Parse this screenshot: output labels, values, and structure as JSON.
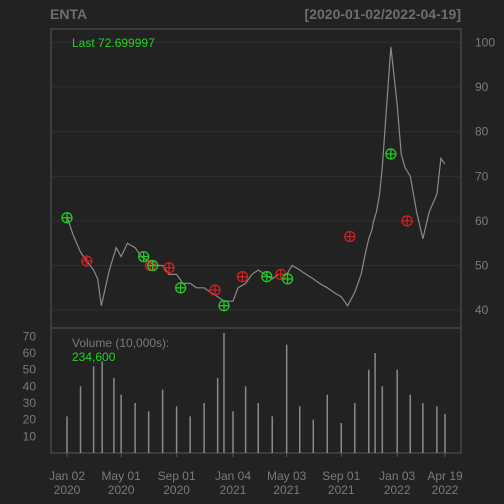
{
  "header": {
    "symbol": "ENTA",
    "range": "[2020-01-02/2022-04-19]"
  },
  "price_panel": {
    "last_label": "Last 72.699997"
  },
  "volume_panel": {
    "title": "Volume (10,000s):",
    "last_value": "234,600"
  },
  "colors": {
    "background": "#222222",
    "frame": "#555555",
    "price_line": "#8a8a8a",
    "volume_bars": "#8a8a8a",
    "up_signal": "#22cc22",
    "down_signal": "#cc2222",
    "text_green": "#1fd61f",
    "text_grey": "#7a7a7a"
  },
  "chart_data": [
    {
      "type": "line",
      "title": "ENTA",
      "subtitle": "[2020-01-02/2022-04-19]",
      "series": [
        {
          "x": [
            "2020-01-02",
            "2020-01-15",
            "2020-02-01",
            "2020-02-15",
            "2020-03-01",
            "2020-03-10",
            "2020-03-18",
            "2020-03-25",
            "2020-04-05",
            "2020-04-20",
            "2020-05-01",
            "2020-05-15",
            "2020-06-01",
            "2020-06-15",
            "2020-07-01",
            "2020-07-15",
            "2020-08-01",
            "2020-08-15",
            "2020-09-01",
            "2020-09-15",
            "2020-10-01",
            "2020-10-15",
            "2020-11-01",
            "2020-11-15",
            "2020-12-01",
            "2020-12-15",
            "2021-01-04",
            "2021-01-15",
            "2021-02-01",
            "2021-02-15",
            "2021-03-01",
            "2021-03-15",
            "2021-04-01",
            "2021-04-15",
            "2021-05-03",
            "2021-05-15",
            "2021-06-01",
            "2021-06-15",
            "2021-07-01",
            "2021-07-15",
            "2021-08-01",
            "2021-08-15",
            "2021-09-01",
            "2021-09-15",
            "2021-10-01",
            "2021-10-15",
            "2021-10-25",
            "2021-11-01",
            "2021-11-08",
            "2021-11-12",
            "2021-11-18",
            "2021-11-25",
            "2021-12-01",
            "2021-12-10",
            "2021-12-20",
            "2022-01-03",
            "2022-01-12",
            "2022-01-20",
            "2022-02-01",
            "2022-02-15",
            "2022-03-01",
            "2022-03-15",
            "2022-04-01",
            "2022-04-10",
            "2022-04-19"
          ],
          "values": [
            61,
            57,
            53,
            51,
            49,
            47,
            41,
            44,
            49,
            54,
            52,
            55,
            54,
            52,
            51,
            50,
            50,
            48,
            48,
            46,
            46,
            45,
            45,
            44,
            43,
            42,
            42,
            45,
            46,
            48,
            49,
            48,
            47,
            48,
            48,
            50,
            49,
            48,
            47,
            46,
            45,
            44,
            43,
            41,
            44,
            48,
            53,
            56,
            58,
            60,
            62,
            66,
            72,
            85,
            99,
            86,
            75,
            72,
            70,
            62,
            56,
            62,
            66,
            74,
            72.7
          ]
        }
      ],
      "signals_up": [
        {
          "x": "2020-01-02",
          "y": 60.7
        },
        {
          "x": "2020-06-20",
          "y": 52
        },
        {
          "x": "2020-07-10",
          "y": 50
        },
        {
          "x": "2020-09-10",
          "y": 45
        },
        {
          "x": "2020-12-15",
          "y": 41
        },
        {
          "x": "2021-03-20",
          "y": 47.5
        },
        {
          "x": "2021-05-05",
          "y": 47
        },
        {
          "x": "2021-12-20",
          "y": 75
        }
      ],
      "signals_down": [
        {
          "x": "2020-02-15",
          "y": 51
        },
        {
          "x": "2020-07-05",
          "y": 50
        },
        {
          "x": "2020-08-15",
          "y": 49.5
        },
        {
          "x": "2020-11-25",
          "y": 44.5
        },
        {
          "x": "2021-01-25",
          "y": 47.5
        },
        {
          "x": "2021-04-20",
          "y": 48
        },
        {
          "x": "2021-09-20",
          "y": 56.5
        },
        {
          "x": "2022-01-25",
          "y": 60
        }
      ],
      "ylim": [
        36,
        103
      ],
      "yticks": [
        40,
        50,
        60,
        70,
        80,
        90,
        100
      ],
      "xlim": [
        "2020-01-02",
        "2022-04-19"
      ],
      "xticks": [
        {
          "date": "2020-01-02",
          "line1": "Jan 02",
          "line2": "2020"
        },
        {
          "date": "2020-05-01",
          "line1": "May 01",
          "line2": "2020"
        },
        {
          "date": "2020-09-01",
          "line1": "Sep 01",
          "line2": "2020"
        },
        {
          "date": "2021-01-04",
          "line1": "Jan 04",
          "line2": "2021"
        },
        {
          "date": "2021-05-03",
          "line1": "May 03",
          "line2": "2021"
        },
        {
          "date": "2021-09-01",
          "line1": "Sep 01",
          "line2": "2021"
        },
        {
          "date": "2022-01-03",
          "line1": "Jan 03",
          "line2": "2022"
        },
        {
          "date": "2022-04-19",
          "line1": "Apr 19",
          "line2": "2022"
        }
      ]
    },
    {
      "type": "bar",
      "title": "Volume (10,000s):",
      "x": [
        "2020-01-02",
        "2020-02-01",
        "2020-03-01",
        "2020-03-20",
        "2020-04-15",
        "2020-05-01",
        "2020-06-01",
        "2020-07-01",
        "2020-08-01",
        "2020-09-01",
        "2020-10-01",
        "2020-11-01",
        "2020-12-01",
        "2020-12-15",
        "2021-01-04",
        "2021-02-01",
        "2021-03-01",
        "2021-04-01",
        "2021-05-03",
        "2021-06-01",
        "2021-07-01",
        "2021-08-01",
        "2021-09-01",
        "2021-10-01",
        "2021-11-01",
        "2021-11-15",
        "2021-12-01",
        "2022-01-03",
        "2022-02-01",
        "2022-03-01",
        "2022-04-01",
        "2022-04-19"
      ],
      "values": [
        22,
        40,
        52,
        55,
        45,
        35,
        30,
        25,
        38,
        28,
        22,
        30,
        45,
        72,
        25,
        40,
        30,
        22,
        65,
        28,
        20,
        35,
        18,
        30,
        50,
        60,
        40,
        50,
        35,
        30,
        28,
        23.46
      ],
      "ylim": [
        0,
        75
      ],
      "yticks": [
        10,
        20,
        30,
        40,
        50,
        60,
        70
      ]
    }
  ]
}
